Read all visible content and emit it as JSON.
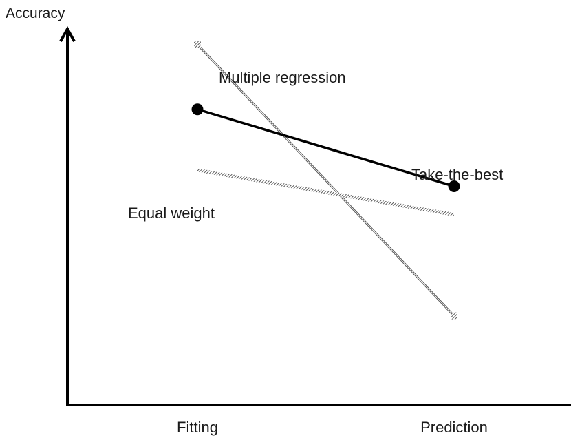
{
  "chart_data": {
    "type": "line",
    "title": "",
    "xlabel": "",
    "ylabel": "Accuracy",
    "categories": [
      "Fitting",
      "Prediction"
    ],
    "ylim": [
      0,
      100
    ],
    "grid": false,
    "legend": "none",
    "series": [
      {
        "name": "Multiple regression",
        "values": [
          89,
          22
        ],
        "color": "#555555",
        "style": "thin-double",
        "marker": "hatched-square"
      },
      {
        "name": "Take-the-best",
        "values": [
          73,
          54
        ],
        "color": "#000000",
        "style": "thick",
        "marker": "dot"
      },
      {
        "name": "Equal weight",
        "values": [
          58,
          47
        ],
        "color": "#888888",
        "style": "hatched"
      }
    ]
  }
}
